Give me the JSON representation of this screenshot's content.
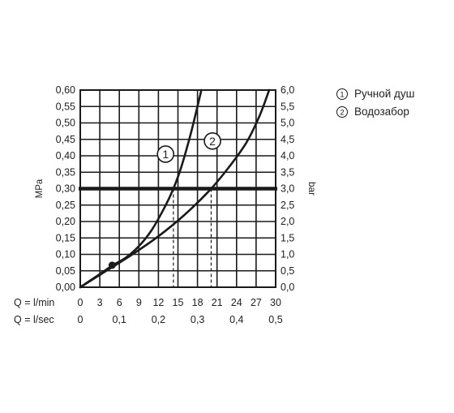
{
  "colors": {
    "ink": "#1a1a1a",
    "grid": "#1a1a1a",
    "background": "#ffffff"
  },
  "chart_data": {
    "type": "line",
    "title": "",
    "xlabel": "",
    "ylabel_left": "MPa",
    "ylabel_right": "bar",
    "x_axes": [
      {
        "label": "Q = l/min",
        "unit": "l/min",
        "ticks": [
          "0",
          "3",
          "6",
          "9",
          "12",
          "15",
          "18",
          "21",
          "24",
          "27",
          "30"
        ],
        "range": [
          0,
          30
        ]
      },
      {
        "label": "Q = l/sec",
        "unit": "l/sec",
        "ticks": [
          "0",
          "0,1",
          "0,2",
          "0,3",
          "0,4",
          "0,5"
        ],
        "range": [
          0,
          0.5
        ]
      }
    ],
    "y_left": {
      "unit": "MPa",
      "range": [
        0,
        0.6
      ],
      "ticks": [
        "0,00",
        "0,05",
        "0,10",
        "0,15",
        "0,20",
        "0,25",
        "0,30",
        "0,35",
        "0,40",
        "0,45",
        "0,50",
        "0,55",
        "0,60"
      ]
    },
    "y_right": {
      "unit": "bar",
      "range": [
        0,
        6
      ],
      "ticks": [
        "0,0",
        "0,5",
        "1,0",
        "1,5",
        "2,0",
        "2,5",
        "3,0",
        "3,5",
        "4,0",
        "4,5",
        "5,0",
        "5,5",
        "6,0"
      ]
    },
    "grid": true,
    "reference_line": {
      "y_mpa": 0.3,
      "y_bar": 3.0
    },
    "drop_lines": [
      {
        "series": "1",
        "x_l_min": 14.3,
        "y_mpa": 0.3
      },
      {
        "series": "2",
        "x_l_min": 20.1,
        "y_mpa": 0.3
      }
    ],
    "marker_point": {
      "x_l_min": 4.9,
      "y_mpa": 0.067
    },
    "series": [
      {
        "name": "1",
        "x": [
          0,
          3,
          5,
          7,
          9,
          11,
          13,
          14.3,
          15.5,
          17,
          18.6
        ],
        "y": [
          0,
          0.04,
          0.067,
          0.09,
          0.125,
          0.175,
          0.245,
          0.3,
          0.365,
          0.47,
          0.6
        ]
      },
      {
        "name": "2",
        "x": [
          0,
          4,
          8,
          12,
          16,
          20.1,
          23,
          25.5,
          27.5,
          29
        ],
        "y": [
          0,
          0.05,
          0.1,
          0.155,
          0.22,
          0.3,
          0.37,
          0.44,
          0.52,
          0.6
        ]
      }
    ],
    "legend": {
      "position": "right",
      "items": [
        {
          "marker": "①",
          "label": "Ручной душ"
        },
        {
          "marker": "②",
          "label": "Водозабор"
        }
      ]
    },
    "curve_badges": [
      {
        "series": "1",
        "text": "1"
      },
      {
        "series": "2",
        "text": "2"
      }
    ]
  }
}
